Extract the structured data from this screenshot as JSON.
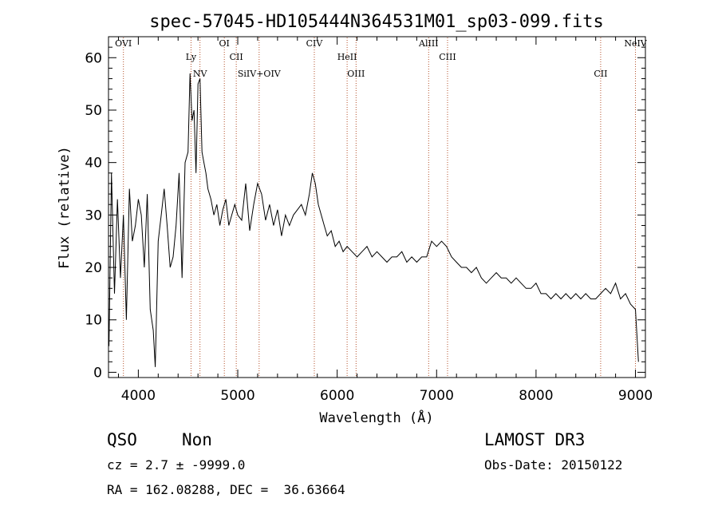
{
  "chart_data": {
    "type": "line",
    "title": "spec-57045-HD105444N364531M01_sp03-099.fits",
    "xlabel": "Wavelength (Å)",
    "ylabel": "Flux (relative)",
    "xlim": [
      3700,
      9100
    ],
    "ylim": [
      -1,
      64
    ],
    "x_ticks": [
      4000,
      5000,
      6000,
      7000,
      8000,
      9000
    ],
    "y_ticks": [
      0,
      10,
      20,
      30,
      40,
      50,
      60
    ],
    "grid": false,
    "legend": "none",
    "line_color": "#000000",
    "marker_color": "#b4502a",
    "emission_lines": [
      {
        "label": "OVI",
        "x": 3850
      },
      {
        "label": "Ly",
        "x": 4530
      },
      {
        "label": "NV",
        "x": 4620
      },
      {
        "label": "OI",
        "x": 4865
      },
      {
        "label": "CII",
        "x": 4985
      },
      {
        "label": "SiIV+OIV",
        "x": 5215
      },
      {
        "label": "CIV",
        "x": 5770
      },
      {
        "label": "HeII",
        "x": 6100
      },
      {
        "label": "OIII",
        "x": 6190
      },
      {
        "label": "AlIII",
        "x": 6920
      },
      {
        "label": "CIII",
        "x": 7110
      },
      {
        "label": "CII",
        "x": 8650
      },
      {
        "label": "NeIV",
        "x": 9000
      }
    ],
    "spectrum": {
      "x": [
        3705,
        3730,
        3760,
        3790,
        3820,
        3850,
        3880,
        3910,
        3940,
        3970,
        4000,
        4030,
        4060,
        4090,
        4120,
        4150,
        4170,
        4200,
        4230,
        4260,
        4290,
        4320,
        4350,
        4380,
        4410,
        4440,
        4470,
        4500,
        4520,
        4540,
        4560,
        4580,
        4600,
        4620,
        4640,
        4660,
        4680,
        4700,
        4730,
        4760,
        4790,
        4820,
        4850,
        4880,
        4910,
        4940,
        4970,
        5000,
        5040,
        5080,
        5120,
        5160,
        5200,
        5240,
        5280,
        5320,
        5360,
        5400,
        5440,
        5480,
        5520,
        5560,
        5600,
        5640,
        5680,
        5720,
        5750,
        5780,
        5810,
        5840,
        5870,
        5900,
        5940,
        5980,
        6020,
        6060,
        6100,
        6150,
        6200,
        6250,
        6300,
        6350,
        6400,
        6450,
        6500,
        6550,
        6600,
        6650,
        6700,
        6750,
        6800,
        6850,
        6900,
        6950,
        7000,
        7050,
        7100,
        7150,
        7200,
        7250,
        7300,
        7350,
        7400,
        7450,
        7500,
        7550,
        7600,
        7650,
        7700,
        7750,
        7800,
        7850,
        7900,
        7950,
        8000,
        8050,
        8100,
        8150,
        8200,
        8250,
        8300,
        8350,
        8400,
        8450,
        8500,
        8550,
        8600,
        8650,
        8700,
        8750,
        8800,
        8850,
        8900,
        8950,
        9000,
        9030
      ],
      "y": [
        5,
        38,
        15,
        33,
        18,
        30,
        10,
        35,
        25,
        28,
        33,
        30,
        20,
        34,
        12,
        8,
        1,
        25,
        30,
        35,
        28,
        20,
        22,
        28,
        38,
        18,
        40,
        42,
        57,
        48,
        50,
        38,
        55,
        56,
        42,
        40,
        38,
        35,
        33,
        30,
        32,
        28,
        31,
        33,
        28,
        30,
        32,
        30,
        29,
        36,
        27,
        32,
        36,
        34,
        29,
        32,
        28,
        31,
        26,
        30,
        28,
        30,
        31,
        32,
        30,
        34,
        38,
        36,
        32,
        30,
        28,
        26,
        27,
        24,
        25,
        23,
        24,
        23,
        22,
        23,
        24,
        22,
        23,
        22,
        21,
        22,
        22,
        23,
        21,
        22,
        21,
        22,
        22,
        25,
        24,
        25,
        24,
        22,
        21,
        20,
        20,
        19,
        20,
        18,
        17,
        18,
        19,
        18,
        18,
        17,
        18,
        17,
        16,
        16,
        17,
        15,
        15,
        14,
        15,
        14,
        15,
        14,
        15,
        14,
        15,
        14,
        14,
        15,
        16,
        15,
        17,
        14,
        15,
        13,
        12,
        2
      ]
    }
  },
  "info": {
    "class": "QSO",
    "subclass": "Non",
    "survey": "LAMOST DR3",
    "cz": "cz = 2.7 ± -9999.0",
    "obs_date": "Obs-Date: 20150122",
    "radec": "RA = 162.08288, DEC =  36.63664"
  }
}
